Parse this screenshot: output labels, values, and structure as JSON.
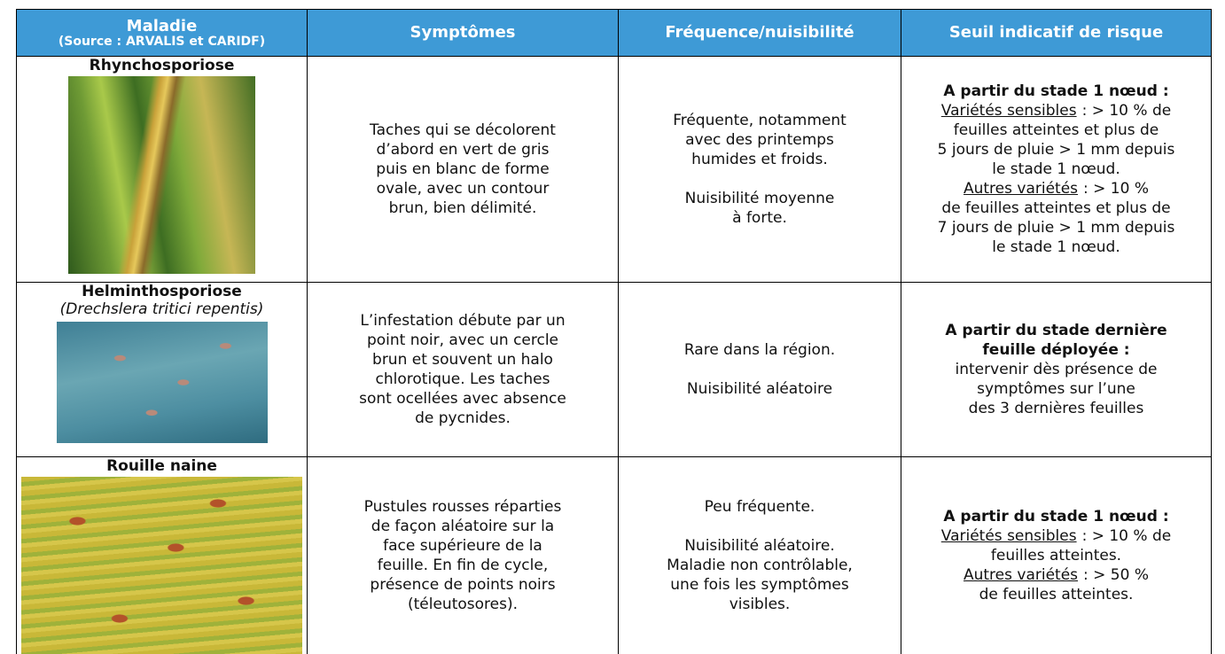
{
  "table": {
    "header": [
      [
        "Maladie",
        "(Source : ARVALIS et CARIDF)"
      ],
      [
        "Symptômes"
      ],
      [
        "Fréquence/nuisibilité"
      ],
      [
        "Seuil indicatif de risque"
      ]
    ],
    "rows": [
      {
        "name": "Rhynchosporiose",
        "symptoms": [
          "Taches qui se décolorent",
          "d’abord en vert de gris",
          "puis en blanc de forme",
          "ovale, avec un contour",
          "brun, bien délimité."
        ],
        "frequency": [
          [
            "Fréquente, notamment",
            "avec des printemps",
            "humides et froids."
          ],
          [
            "Nuisibilité moyenne",
            "à forte."
          ]
        ],
        "threshold": {
          "heading": [
            "A partir du stade 1 nœud :"
          ],
          "lines": [
            {
              "u": "Variétés sensibles",
              "t": ": > 10 % de"
            },
            "feuilles atteintes et plus de",
            "5 jours de pluie > 1 mm depuis",
            "le stade 1 nœud.",
            {
              "u": "Autres variétés",
              "t": ": > 10 %"
            },
            "de feuilles atteintes et plus de",
            "7 jours de pluie > 1 mm depuis",
            "le stade 1 nœud."
          ]
        }
      },
      {
        "name": "Helminthosporiose",
        "latin": "(Drechslera tritici repentis)",
        "symptoms": [
          "L’infestation débute par un",
          "point noir, avec un cercle",
          "brun et souvent un halo",
          "chlorotique. Les taches",
          "sont ocellées avec absence",
          "de pycnides."
        ],
        "frequency": [
          [
            "Rare dans la région."
          ],
          [
            "Nuisibilité aléatoire"
          ]
        ],
        "threshold": {
          "heading": [
            "A partir du stade dernière",
            "feuille déployée :"
          ],
          "lines": [
            "intervenir dès présence de",
            "symptômes sur l’une",
            "des 3 dernières feuilles"
          ]
        }
      },
      {
        "name": "Rouille naine",
        "symptoms": [
          "Pustules rousses réparties",
          "de façon aléatoire sur la",
          "face supérieure de la",
          "feuille. En fin de cycle,",
          "présence de points noirs",
          "(téleutosores)."
        ],
        "frequency": [
          [
            "Peu fréquente."
          ],
          [
            "Nuisibilité aléatoire.",
            "Maladie non contrôlable,",
            "une fois les symptômes",
            "visibles."
          ]
        ],
        "threshold": {
          "heading": [
            "A partir du stade 1 nœud :"
          ],
          "lines": [
            {
              "u": "Variétés sensibles",
              "t": ": > 10 % de"
            },
            "feuilles atteintes.",
            {
              "u": "Autres variétés",
              "t": ": > 50 %"
            },
            "de feuilles atteintes."
          ]
        }
      }
    ]
  }
}
